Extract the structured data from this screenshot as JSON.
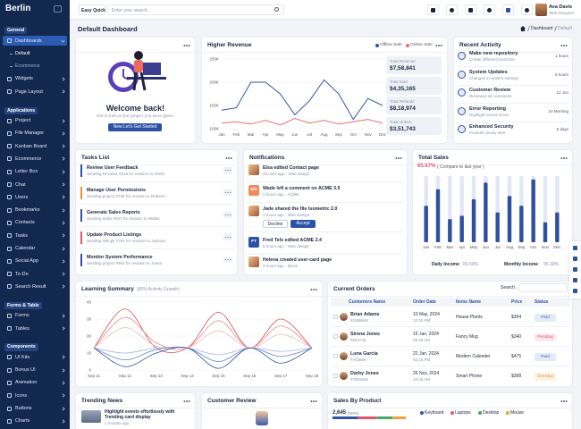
{
  "brand": "Berlin",
  "sidebar": [
    {
      "title": "General",
      "items": [
        {
          "label": "Dashboards",
          "children": [
            "Default",
            "Ecommerce"
          ]
        },
        "Widgets",
        "Page Layout"
      ]
    },
    {
      "title": "Applications",
      "items": [
        "Project",
        "File Manager",
        "Kanban Board",
        "Ecommerce",
        "Letter Box",
        "Chat",
        "Users",
        "Bookmarks",
        "Contacts",
        "Tasks",
        "Calendar",
        "Social App",
        "To-Do",
        "Search Result"
      ]
    },
    {
      "title": "Forms & Table",
      "items": [
        "Forms",
        "Tables"
      ]
    },
    {
      "title": "Components",
      "items": [
        "UI Kits",
        "Bonus UI",
        "Animation",
        "Icons",
        "Buttons",
        "Charts"
      ]
    }
  ],
  "topbar": {
    "quick": "Easy Quick",
    "search": "Enter your search...",
    "user": {
      "name": "Ava Davis",
      "role": "Web Designer"
    }
  },
  "page": {
    "title": "Default Dashboard",
    "breadcrumb": [
      "Dashboard",
      "Default"
    ]
  },
  "welcome": {
    "title": "Welcome back!",
    "text": "Get to lurk on the project you were given.",
    "button": "New Let's Get Started"
  },
  "revenue": {
    "stats": [
      {
        "label": "Total Revenue",
        "value": "$7,58,841"
      },
      {
        "label": "Total Sold",
        "value": "$4,35,165"
      },
      {
        "label": "Total Refunds",
        "value": "$8,18,974"
      },
      {
        "label": "Total Orders",
        "value": "$3,51,743"
      }
    ]
  },
  "activity": {
    "title": "Recent Activity",
    "items": [
      {
        "title": "Make new repository",
        "text": "Create different branches",
        "time": "1 hours"
      },
      {
        "title": "System Updates",
        "text": "Changes in system settings",
        "time": "5 hours"
      },
      {
        "title": "Customer Review",
        "text": "Reviewed all comments",
        "time": "12 Jun"
      },
      {
        "title": "Error Reporting",
        "text": "Highlight recent errors",
        "time": "10 Morning"
      },
      {
        "title": "Enhanced Security",
        "text": "Provides timely alert",
        "time": "5 days"
      }
    ]
  },
  "tasks": {
    "title": "Tasks List",
    "items": [
      {
        "title": "Review User Feedback",
        "text": "Sending Reviews #648 for revision to Smith"
      },
      {
        "title": "Manage User Permissions",
        "text": "Sending project #738 for revision to Roberts"
      },
      {
        "title": "Generate Sales Reports",
        "text": "Sending tasks #447 for revision to Walter"
      },
      {
        "title": "Update Product Listings",
        "text": "Sending listings #761 for revision to Jackson"
      },
      {
        "title": "Monitor System Performance",
        "text": "Sending project #564 for revision to Jones"
      }
    ]
  },
  "notifications": {
    "title": "Notifications",
    "actions": [
      "Decline",
      "Accept"
    ],
    "items": [
      {
        "title": "Elsa edited Contact page",
        "meta": "25 mins ago - Web design"
      },
      {
        "title": "Wade left a comment on ACME 3.5",
        "meta": "2 hours ago - ACME",
        "avatar": "MS"
      },
      {
        "title": "Jade shared the file Isometric 2.0",
        "meta": "3 hours ago - Web Design"
      },
      {
        "title": "Fred Tels edited ACME 2.4",
        "meta": "6 hours ago - Web design",
        "avatar": "FT"
      },
      {
        "title": "Helena created user-card page",
        "meta": "9 hours ago - Block"
      }
    ]
  },
  "sales": {
    "percent": "65.67%",
    "compare": "( Compare to last year )",
    "daily": {
      "label": "Daily Income",
      "value": "80.60%"
    },
    "monthly": {
      "label": "Monthly Income",
      "value": "95.30%"
    }
  },
  "orders": {
    "title": "Current Orders",
    "search": "Search:",
    "columns": [
      "Customers Name",
      "Order Date",
      "Items Name",
      "Price",
      "Status"
    ],
    "rows": [
      {
        "name": "Brian Adams",
        "id": "#1089545",
        "date": "10 May, 2024",
        "time": "12:00 PM",
        "item": "House Plants",
        "price": "$354",
        "status": "Paid",
        "status_color": "#3d63c8"
      },
      {
        "name": "Sirena Jones",
        "id": "#654745",
        "date": "15 Jan, 2024",
        "time": "09:30 AM",
        "item": "Fancy Mug",
        "price": "$340",
        "status": "Pending",
        "status_color": "#e0566b"
      },
      {
        "name": "Luna Garcia",
        "id": "#784596",
        "date": "22 Jan, 2024",
        "time": "02:15 PM",
        "item": "Modern Calender",
        "price": "$475",
        "status": "Paid",
        "status_color": "#3d63c8"
      },
      {
        "name": "Darby Jones",
        "id": "#7816545",
        "date": "26 Nov, 2024",
        "time": "10:45 AM",
        "item": "Smart Phone",
        "price": "$398",
        "status": "Overdue",
        "status_color": "#e5962e"
      }
    ]
  },
  "news": {
    "title": "Trending News",
    "headline": "Highlight events effortlessly with Trending card display",
    "time": "4 months ago"
  },
  "review": {
    "title": "Customer Review"
  },
  "products": {
    "title": "Sales By Product",
    "count": "2,645",
    "unit": "Items"
  },
  "chart_data": [
    {
      "type": "line",
      "title": "Higher Revenue",
      "grid": true,
      "categories": [
        "Jan",
        "Feb",
        "Mar",
        "Apr",
        "May",
        "Jun",
        "Jul",
        "Aug",
        "Sep",
        "Oct",
        "Nov",
        "Dec"
      ],
      "ylim": [
        100000,
        250000
      ],
      "yticks": [
        {
          "value": 100000,
          "label": "100K"
        },
        {
          "value": 150000,
          "label": "150K"
        },
        {
          "value": 200000,
          "label": "200K"
        },
        {
          "value": 250000,
          "label": "250K"
        }
      ],
      "series": [
        {
          "name": "Offline Sale",
          "color": "#2f54a4",
          "values": [
            140000,
            145000,
            200000,
            200000,
            175000,
            130000,
            160000,
            205000,
            175000,
            120000,
            165000,
            150000
          ]
        },
        {
          "name": "Online Sale",
          "color": "#e8706f",
          "values": [
            112000,
            115000,
            110000,
            118000,
            108000,
            122000,
            112000,
            118000,
            110000,
            115000,
            120000,
            112000
          ]
        }
      ]
    },
    {
      "type": "bar",
      "title": "Total Sales",
      "color": "#2f4f9f",
      "track_color": "#e1e7f4",
      "categories": [
        "Jan",
        "Feb",
        "Mar",
        "Apr",
        "May",
        "Jun",
        "Jul",
        "Aug",
        "Sep",
        "Oct",
        "Nov",
        "Dec"
      ],
      "ylim": [
        0,
        100
      ],
      "values": [
        55,
        80,
        35,
        40,
        65,
        90,
        45,
        70,
        55,
        95,
        30,
        45
      ]
    },
    {
      "type": "line",
      "title": "Learning Summary",
      "subtitle": "(85% Activity Growth)",
      "grid": true,
      "smooth": true,
      "categories": [
        "Sep 11",
        "Sep 12",
        "Sep 13",
        "Sep 14",
        "Sep 15",
        "Sep 16",
        "Sep 17",
        "Sep 18"
      ],
      "ylim": [
        0,
        40
      ],
      "yticks": [
        0,
        10,
        20,
        30,
        40
      ],
      "series": [
        {
          "name": null,
          "color": "#d9534f",
          "values": [
            13,
            36,
            13,
            13,
            34,
            13,
            30,
            13
          ]
        },
        {
          "name": null,
          "color": "#e88b8b",
          "values": [
            13,
            31,
            16,
            13,
            29,
            13,
            26,
            13
          ]
        },
        {
          "name": null,
          "color": "#f2b7b7",
          "values": [
            13,
            25,
            14,
            13,
            23,
            13,
            21,
            13
          ]
        },
        {
          "name": null,
          "color": "#a6b7e0",
          "values": [
            13,
            10,
            13,
            13,
            9,
            13,
            11,
            13
          ]
        },
        {
          "name": null,
          "color": "#6b86c8",
          "values": [
            13,
            6,
            12,
            13,
            5,
            13,
            8,
            13
          ]
        },
        {
          "name": null,
          "color": "#2f54a4",
          "values": [
            13,
            2,
            10,
            13,
            1,
            13,
            4,
            13
          ]
        }
      ]
    },
    {
      "type": "stacked_bar",
      "xlim": [
        0,
        100
      ],
      "categories": [
        "Keyboard",
        "Laptops",
        "Desktop",
        "Mouse"
      ],
      "values": [
        35,
        25,
        22,
        18
      ],
      "colors": [
        "#2f54a4",
        "#e0566b",
        "#43a86b",
        "#f0a13a"
      ]
    }
  ]
}
